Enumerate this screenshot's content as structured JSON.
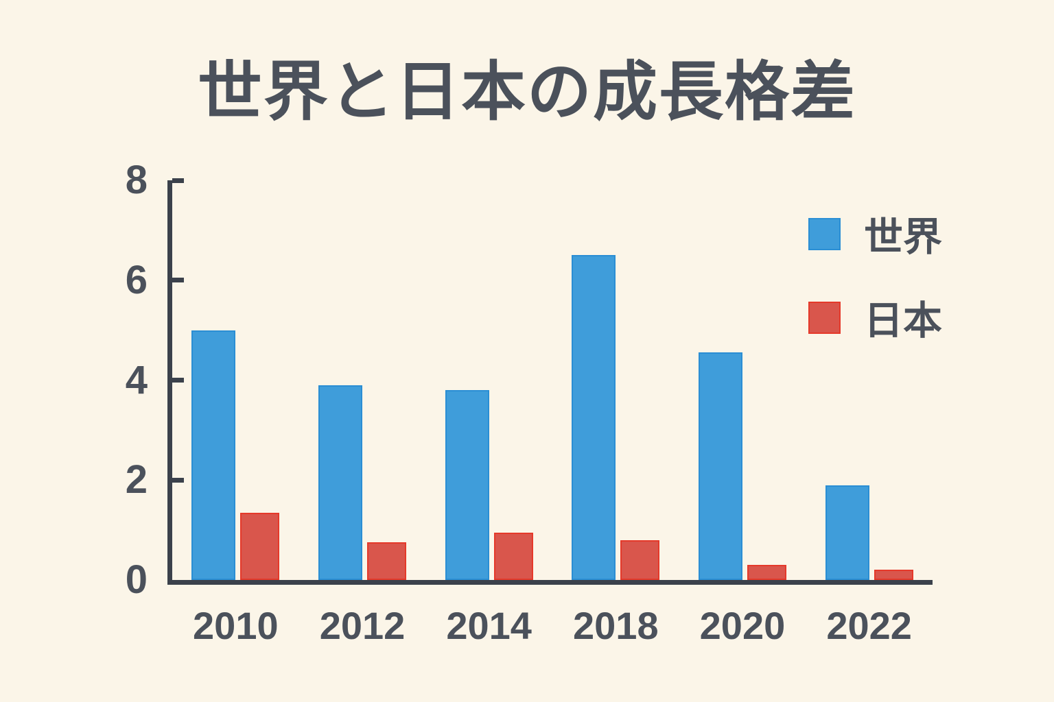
{
  "title": "世界と日本の成長格差",
  "colors": {
    "background": "#fbf5e8",
    "ink": "#4b515b",
    "axis": "#3b414b",
    "world_fill": "#3f9dda",
    "world_stroke": "#2a8ed4",
    "japan_fill": "#d9564c",
    "japan_stroke": "#e5392a"
  },
  "legend": {
    "items": [
      {
        "label": "世界",
        "series": "world"
      },
      {
        "label": "日本",
        "series": "japan"
      }
    ]
  },
  "chart_data": {
    "type": "bar",
    "title": "世界と日本の成長格差",
    "categories": [
      "2010",
      "2012",
      "2014",
      "2018",
      "2020",
      "2022"
    ],
    "series": [
      {
        "name": "世界",
        "key": "world",
        "values": [
          5.0,
          3.9,
          3.8,
          6.5,
          4.55,
          1.9
        ]
      },
      {
        "name": "日本",
        "key": "japan",
        "values": [
          1.35,
          0.75,
          0.95,
          0.8,
          0.3,
          0.2
        ]
      }
    ],
    "xlabel": "",
    "ylabel": "",
    "ylim": [
      0,
      8
    ],
    "yticks": [
      0,
      2,
      4,
      6,
      8
    ],
    "grid": false,
    "legend_position": "upper-right"
  }
}
